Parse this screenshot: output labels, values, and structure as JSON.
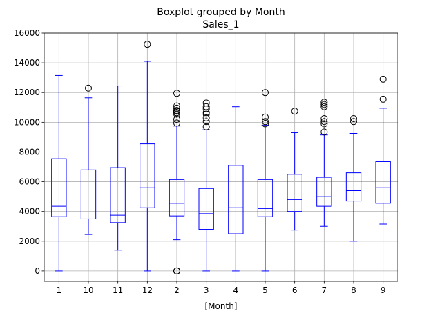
{
  "chart_data": {
    "type": "box",
    "title": "Boxplot grouped by Month",
    "subtitle": "Sales_1",
    "xlabel": "[Month]",
    "ylabel": "",
    "ylim": [
      -700,
      16000
    ],
    "yticks": [
      0,
      2000,
      4000,
      6000,
      8000,
      10000,
      12000,
      14000,
      16000
    ],
    "grid": true,
    "colors": {
      "box": "#0000ff",
      "outlier": "#000000",
      "grid": "#b0b0b0"
    },
    "categories": [
      "1",
      "10",
      "11",
      "12",
      "2",
      "3",
      "4",
      "5",
      "6",
      "7",
      "8",
      "9"
    ],
    "boxes": [
      {
        "whislo": 0,
        "q1": 3650,
        "med": 4350,
        "q3": 7550,
        "whishi": 13150,
        "fliers": []
      },
      {
        "whislo": 2450,
        "q1": 3500,
        "med": 4100,
        "q3": 6800,
        "whishi": 11650,
        "fliers": [
          12300
        ]
      },
      {
        "whislo": 1400,
        "q1": 3250,
        "med": 3750,
        "q3": 6950,
        "whishi": 12450,
        "fliers": []
      },
      {
        "whislo": 0,
        "q1": 4250,
        "med": 5600,
        "q3": 8550,
        "whishi": 14100,
        "fliers": [
          15250
        ]
      },
      {
        "whislo": 2100,
        "q1": 3700,
        "med": 4550,
        "q3": 6150,
        "whishi": 9750,
        "fliers": [
          0,
          0,
          0,
          9950,
          10200,
          10550,
          10650,
          10750,
          10800,
          10950,
          11100,
          11950
        ]
      },
      {
        "whislo": 0,
        "q1": 2800,
        "med": 3850,
        "q3": 5550,
        "whishi": 9500,
        "fliers": [
          9700,
          10050,
          10300,
          10550,
          10650,
          10900,
          11050,
          11300
        ]
      },
      {
        "whislo": 0,
        "q1": 2500,
        "med": 4250,
        "q3": 7100,
        "whishi": 11050,
        "fliers": []
      },
      {
        "whislo": 0,
        "q1": 3650,
        "med": 4200,
        "q3": 6150,
        "whishi": 9800,
        "fliers": [
          9900,
          10050,
          10350,
          12000
        ]
      },
      {
        "whislo": 2750,
        "q1": 4000,
        "med": 4800,
        "q3": 6500,
        "whishi": 9300,
        "fliers": [
          10750
        ]
      },
      {
        "whislo": 3000,
        "q1": 4350,
        "med": 5000,
        "q3": 6300,
        "whishi": 9150,
        "fliers": [
          9350,
          9900,
          10050,
          10250,
          11050,
          11200,
          11350
        ]
      },
      {
        "whislo": 2000,
        "q1": 4700,
        "med": 5400,
        "q3": 6600,
        "whishi": 9250,
        "fliers": [
          10050,
          10250
        ]
      },
      {
        "whislo": 3150,
        "q1": 4550,
        "med": 5600,
        "q3": 7350,
        "whishi": 10950,
        "fliers": [
          11550,
          12900
        ]
      }
    ]
  }
}
